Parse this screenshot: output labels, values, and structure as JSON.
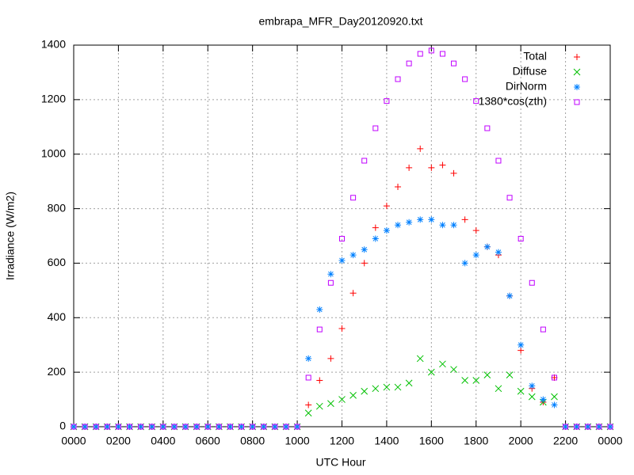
{
  "chart_data": {
    "type": "scatter",
    "title": "embrapa_MFR_Day20120920.txt",
    "xlabel": "UTC Hour",
    "ylabel": "Irradiance (W/m2)",
    "x": [
      0,
      0.5,
      1,
      1.5,
      2,
      2.5,
      3,
      3.5,
      4,
      4.5,
      5,
      5.5,
      6,
      6.5,
      7,
      7.5,
      8,
      8.5,
      9,
      9.5,
      10,
      10.5,
      11,
      11.5,
      12,
      12.5,
      13,
      13.5,
      14,
      14.5,
      15,
      15.5,
      16,
      16.5,
      17,
      17.5,
      18,
      18.5,
      19,
      19.5,
      20,
      20.5,
      21,
      21.5,
      22,
      22.5,
      23,
      23.5,
      24
    ],
    "series": [
      {
        "name": "Total",
        "color": "#ff0000",
        "marker": "plus",
        "values": [
          0,
          0,
          0,
          0,
          0,
          0,
          0,
          0,
          0,
          0,
          0,
          0,
          0,
          0,
          0,
          0,
          0,
          0,
          0,
          0,
          0,
          80,
          170,
          250,
          360,
          490,
          600,
          730,
          810,
          880,
          950,
          1020,
          950,
          960,
          930,
          760,
          720,
          660,
          630,
          480,
          280,
          140,
          90,
          180,
          0,
          0,
          0,
          0,
          0
        ]
      },
      {
        "name": "Diffuse",
        "color": "#00c000",
        "marker": "cross",
        "values": [
          0,
          0,
          0,
          0,
          0,
          0,
          0,
          0,
          0,
          0,
          0,
          0,
          0,
          0,
          0,
          0,
          0,
          0,
          0,
          0,
          0,
          50,
          75,
          85,
          100,
          115,
          130,
          140,
          145,
          145,
          160,
          250,
          200,
          230,
          210,
          170,
          170,
          190,
          140,
          190,
          130,
          110,
          90,
          110,
          0,
          0,
          0,
          0,
          0
        ]
      },
      {
        "name": "DirNorm",
        "color": "#0080ff",
        "marker": "star",
        "values": [
          0,
          0,
          0,
          0,
          0,
          0,
          0,
          0,
          0,
          0,
          0,
          0,
          0,
          0,
          0,
          0,
          0,
          0,
          0,
          0,
          0,
          250,
          430,
          560,
          610,
          630,
          650,
          690,
          720,
          740,
          750,
          760,
          760,
          740,
          740,
          600,
          630,
          660,
          640,
          480,
          300,
          150,
          100,
          80,
          0,
          0,
          0,
          0,
          0
        ]
      },
      {
        "name": "1380*cos(zth)",
        "color": "#c000ff",
        "marker": "square",
        "values": [
          0,
          0,
          0,
          0,
          0,
          0,
          0,
          0,
          0,
          0,
          0,
          0,
          0,
          0,
          0,
          0,
          0,
          0,
          0,
          0,
          0,
          180,
          357,
          528,
          690,
          840,
          976,
          1095,
          1195,
          1275,
          1333,
          1368,
          1380,
          1368,
          1333,
          1275,
          1195,
          1095,
          976,
          840,
          690,
          528,
          357,
          180,
          0,
          0,
          0,
          0,
          0
        ]
      }
    ],
    "xlim": [
      0,
      24
    ],
    "xticks": [
      {
        "value": 0,
        "label": "0000"
      },
      {
        "value": 2,
        "label": "0200"
      },
      {
        "value": 4,
        "label": "0400"
      },
      {
        "value": 6,
        "label": "0600"
      },
      {
        "value": 8,
        "label": "0800"
      },
      {
        "value": 10,
        "label": "1000"
      },
      {
        "value": 12,
        "label": "1200"
      },
      {
        "value": 14,
        "label": "1400"
      },
      {
        "value": 16,
        "label": "1600"
      },
      {
        "value": 18,
        "label": "1800"
      },
      {
        "value": 20,
        "label": "2000"
      },
      {
        "value": 22,
        "label": "2200"
      },
      {
        "value": 24,
        "label": "0000"
      }
    ],
    "ylim": [
      0,
      1400
    ],
    "yticks": [
      0,
      200,
      400,
      600,
      800,
      1000,
      1200,
      1400
    ],
    "grid": true,
    "legend": "top-right"
  }
}
